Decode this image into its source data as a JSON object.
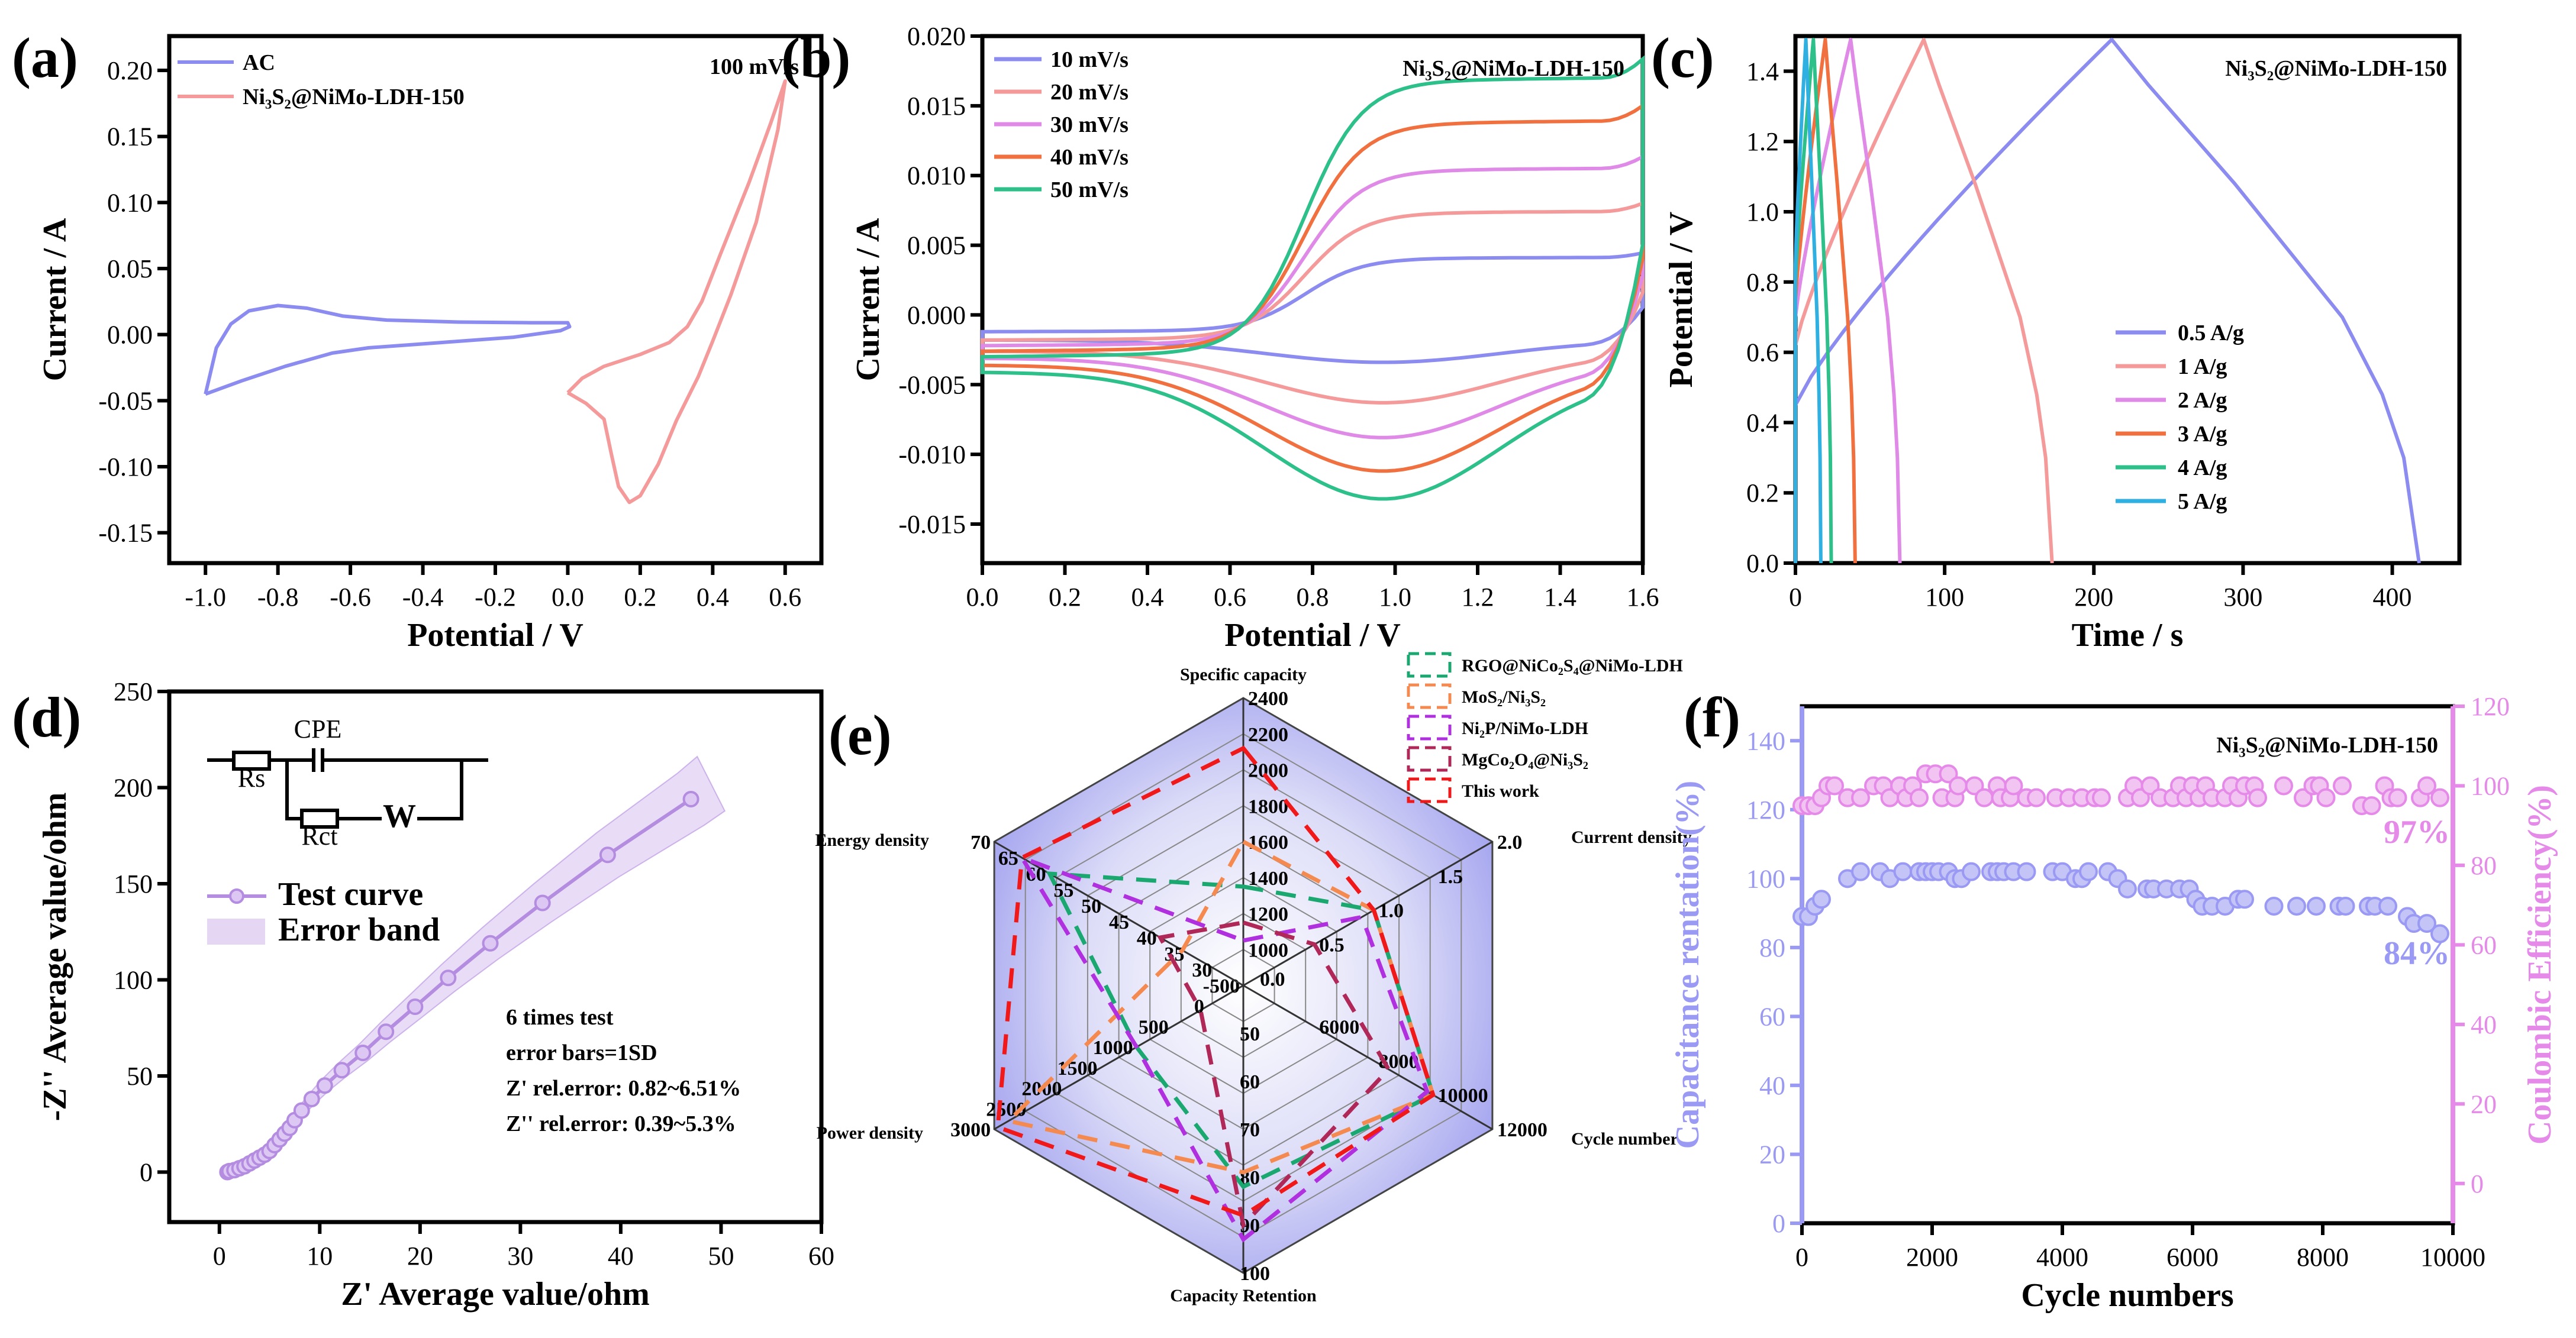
{
  "chart_data": [
    {
      "id": "a",
      "type": "line",
      "panel_label": "(a)",
      "xlabel": "Potential / V",
      "ylabel": "Current / A",
      "xlim": [
        -1.1,
        0.7
      ],
      "ylim": [
        -0.173,
        0.226
      ],
      "xticks": [
        "-1.0",
        "-0.8",
        "-0.6",
        "-0.4",
        "-0.2",
        "0.0",
        "0.2",
        "0.4",
        "0.6"
      ],
      "yticks": [
        "-0.15",
        "-0.10",
        "-0.05",
        "0.00",
        "0.05",
        "0.10",
        "0.15",
        "0.20"
      ],
      "annotation": "100 mV/s",
      "series": [
        {
          "name": "AC",
          "color": "#8c8cf0",
          "points": [
            [
              -1.0,
              -0.045
            ],
            [
              -0.97,
              -0.01
            ],
            [
              -0.93,
              0.008
            ],
            [
              -0.88,
              0.018
            ],
            [
              -0.8,
              0.022
            ],
            [
              -0.72,
              0.02
            ],
            [
              -0.62,
              0.014
            ],
            [
              -0.5,
              0.011
            ],
            [
              -0.3,
              0.0095
            ],
            [
              -0.1,
              0.009
            ],
            [
              0.0,
              0.009
            ],
            [
              0.005,
              0.006
            ],
            [
              -0.02,
              0.003
            ],
            [
              -0.15,
              -0.002
            ],
            [
              -0.35,
              -0.006
            ],
            [
              -0.55,
              -0.01
            ],
            [
              -0.65,
              -0.014
            ],
            [
              -0.78,
              -0.024
            ],
            [
              -0.9,
              -0.035
            ],
            [
              -1.0,
              -0.045
            ]
          ]
        },
        {
          "name": "Ni₃S₂@NiMo-LDH-150",
          "color": "#f59a9a",
          "points": [
            [
              0.0,
              -0.044
            ],
            [
              0.04,
              -0.033
            ],
            [
              0.1,
              -0.024
            ],
            [
              0.2,
              -0.015
            ],
            [
              0.28,
              -0.006
            ],
            [
              0.33,
              0.006
            ],
            [
              0.37,
              0.025
            ],
            [
              0.42,
              0.06
            ],
            [
              0.5,
              0.115
            ],
            [
              0.56,
              0.16
            ],
            [
              0.6,
              0.192
            ],
            [
              0.58,
              0.155
            ],
            [
              0.52,
              0.085
            ],
            [
              0.45,
              0.03
            ],
            [
              0.4,
              -0.005
            ],
            [
              0.36,
              -0.032
            ],
            [
              0.3,
              -0.065
            ],
            [
              0.25,
              -0.098
            ],
            [
              0.2,
              -0.122
            ],
            [
              0.17,
              -0.127
            ],
            [
              0.14,
              -0.115
            ],
            [
              0.12,
              -0.09
            ],
            [
              0.1,
              -0.064
            ],
            [
              0.05,
              -0.052
            ],
            [
              0.0,
              -0.044
            ]
          ]
        }
      ]
    },
    {
      "id": "b",
      "type": "line",
      "panel_label": "(b)",
      "xlabel": "Potential / V",
      "ylabel": "Current / A",
      "xlim": [
        0,
        1.6
      ],
      "ylim": [
        -0.0178,
        0.02
      ],
      "xticks": [
        "0.0",
        "0.2",
        "0.4",
        "0.6",
        "0.8",
        "1.0",
        "1.2",
        "1.4",
        "1.6"
      ],
      "yticks": [
        "-0.015",
        "-0.010",
        "-0.005",
        "0.000",
        "0.005",
        "0.010",
        "0.015",
        "0.020"
      ],
      "annotation": "Ni₃S₂@NiMo-LDH-150",
      "series": [
        {
          "name": "10 mV/s",
          "color": "#8c8cf0",
          "start_upper": -0.0012,
          "plateau": 0.004,
          "start_lower": -0.0018,
          "trough": -0.0034
        },
        {
          "name": "20 mV/s",
          "color": "#f59a9a",
          "start_upper": -0.0018,
          "plateau": 0.0072,
          "start_lower": -0.0026,
          "trough": -0.0063
        },
        {
          "name": "30 mV/s",
          "color": "#e08ae8",
          "start_upper": -0.0022,
          "plateau": 0.0102,
          "start_lower": -0.0031,
          "trough": -0.0088
        },
        {
          "name": "40 mV/s",
          "color": "#f07040",
          "start_upper": -0.0026,
          "plateau": 0.0135,
          "start_lower": -0.0036,
          "trough": -0.0112
        },
        {
          "name": "50 mV/s",
          "color": "#2ec08a",
          "start_upper": -0.003,
          "plateau": 0.0165,
          "start_lower": -0.0041,
          "trough": -0.0132
        }
      ]
    },
    {
      "id": "c",
      "type": "line",
      "panel_label": "(c)",
      "xlabel": "Time / s",
      "ylabel": "Potential / V",
      "xlim": [
        0,
        445
      ],
      "ylim": [
        0,
        1.5
      ],
      "xticks": [
        "0",
        "100",
        "200",
        "300",
        "400"
      ],
      "yticks": [
        "0.0",
        "0.2",
        "0.4",
        "0.6",
        "0.8",
        "1.0",
        "1.2",
        "1.4"
      ],
      "annotation": "Ni₃S₂@NiMo-LDH-150",
      "series": [
        {
          "name": "0.5 A/g",
          "color": "#8c8cf0",
          "start_v": 0.45,
          "charge_end": 212,
          "discharge_end": 418
        },
        {
          "name": "1 A/g",
          "color": "#f59a9a",
          "start_v": 0.62,
          "charge_end": 86,
          "discharge_end": 172
        },
        {
          "name": "2 A/g",
          "color": "#e08ae8",
          "start_v": 0.7,
          "charge_end": 37,
          "discharge_end": 70
        },
        {
          "name": "3 A/g",
          "color": "#f07040",
          "start_v": 0.75,
          "charge_end": 20,
          "discharge_end": 40
        },
        {
          "name": "4 A/g",
          "color": "#2ec08a",
          "start_v": 0.8,
          "charge_end": 12,
          "discharge_end": 24
        },
        {
          "name": "5 A/g",
          "color": "#30b0e0",
          "start_v": 0.85,
          "charge_end": 7,
          "discharge_end": 17
        }
      ]
    },
    {
      "id": "d",
      "type": "line",
      "panel_label": "(d)",
      "xlabel": "Z' Average value/ohm",
      "ylabel": "-Z'' Average value/ohm",
      "xlim": [
        -5,
        60
      ],
      "ylim": [
        -26,
        250
      ],
      "xticks": [
        "0",
        "10",
        "20",
        "30",
        "40",
        "50",
        "60"
      ],
      "yticks": [
        "0",
        "50",
        "100",
        "150",
        "200",
        "250"
      ],
      "legend": [
        "Test curve",
        "Error band"
      ],
      "circuit_labels": {
        "cpe": "CPE",
        "rs": "Rs",
        "rct": "Rct",
        "w": "W"
      },
      "notes": [
        "6 times test",
        "error bars=1SD",
        "Z' rel.error: 0.82~6.51%",
        "Z'' rel.error: 0.39~5.3%"
      ],
      "color": "#b48ce0",
      "points": [
        [
          0.8,
          0
        ],
        [
          1,
          0.5
        ],
        [
          1.5,
          1
        ],
        [
          2,
          2
        ],
        [
          2.5,
          3
        ],
        [
          3,
          4.5
        ],
        [
          3.5,
          6
        ],
        [
          4,
          7.5
        ],
        [
          4.5,
          9
        ],
        [
          5,
          11
        ],
        [
          5.5,
          14
        ],
        [
          6,
          17
        ],
        [
          6.5,
          20
        ],
        [
          7,
          23
        ],
        [
          7.5,
          27
        ],
        [
          8.2,
          32
        ],
        [
          9.2,
          38
        ],
        [
          10.5,
          45
        ],
        [
          12.2,
          53
        ],
        [
          14.3,
          62
        ],
        [
          16.6,
          73
        ],
        [
          19.5,
          86
        ],
        [
          22.8,
          101
        ],
        [
          27,
          119
        ],
        [
          32.2,
          140
        ],
        [
          38.7,
          165
        ],
        [
          47,
          194
        ]
      ],
      "band_rel": 0.07
    },
    {
      "id": "e",
      "type": "radar",
      "panel_label": "(e)",
      "axes": [
        {
          "name": "Specific capacity",
          "min": 800,
          "max": 2400,
          "ticks": [
            "1000",
            "1200",
            "1400",
            "1600",
            "1800",
            "2000",
            "2200",
            "2400"
          ]
        },
        {
          "name": "Current density",
          "min": -0.1,
          "max": 2.0,
          "ticks": [
            "0.0",
            "0.5",
            "1.0",
            "1.5",
            "2.0"
          ]
        },
        {
          "name": "Cycle number",
          "min": 3600,
          "max": 12000,
          "ticks": [
            "6000",
            "8000",
            "10000",
            "12000"
          ]
        },
        {
          "name": "Capacity Retention",
          "min": 40,
          "max": 100,
          "ticks": [
            "50",
            "60",
            "70",
            "80",
            "90",
            "100"
          ]
        },
        {
          "name": "Power density",
          "min": -500,
          "max": 3000,
          "ticks": [
            "-500",
            "0",
            "500",
            "1000",
            "1500",
            "2000",
            "2500",
            "3000"
          ]
        },
        {
          "name": "Energy density",
          "min": 25,
          "max": 70,
          "ticks": [
            "30",
            "35",
            "40",
            "45",
            "50",
            "55",
            "60",
            "65",
            "70"
          ]
        }
      ],
      "series": [
        {
          "name": "RGO@NiCo₂S₄@NiMo-LDH",
          "color": "#1aa870",
          "values": [
            1350,
            1.0,
            10000,
            82,
            1000,
            60
          ]
        },
        {
          "name": "MoS₂/Ni₃S₂",
          "color": "#f58a50",
          "values": [
            1600,
            1.0,
            10000,
            79,
            2800,
            36
          ]
        },
        {
          "name": "Ni₂P/NiMo-LDH",
          "color": "#b030e0",
          "values": [
            1050,
            0.9,
            9800,
            93,
            1000,
            65
          ]
        },
        {
          "name": "MgCo₂O₄@Ni₃S₂",
          "color": "#b02858",
          "values": [
            1150,
            0.5,
            8500,
            90,
            100,
            40
          ]
        },
        {
          "name": "This work",
          "color": "#f01818",
          "values": [
            2120,
            1.0,
            10000,
            88,
            2950,
            65
          ]
        }
      ]
    },
    {
      "id": "f",
      "type": "scatter",
      "panel_label": "(f)",
      "xlabel": "Cycle numbers",
      "ylabel_left": "Capacitance rentation(%)",
      "ylabel_right": "Coulombic Efficiency(%)",
      "xlim": [
        0,
        10000
      ],
      "ylim_left": [
        0,
        150
      ],
      "ylim_right": [
        -10,
        120
      ],
      "xticks": [
        "0",
        "2000",
        "4000",
        "6000",
        "8000",
        "10000"
      ],
      "yticks_left": [
        "0",
        "20",
        "40",
        "60",
        "80",
        "100",
        "120",
        "140"
      ],
      "yticks_right": [
        "0",
        "20",
        "40",
        "60",
        "80",
        "100",
        "120"
      ],
      "annotation": "Ni₃S₂@NiMo-LDH-150",
      "end_labels": {
        "retention": "84%",
        "efficiency": "97%"
      },
      "left_color": "#9a9af5",
      "right_color": "#e58ae8",
      "retention": [
        [
          0,
          89
        ],
        [
          100,
          89
        ],
        [
          200,
          92
        ],
        [
          300,
          94
        ],
        [
          700,
          100
        ],
        [
          900,
          102
        ],
        [
          1200,
          102
        ],
        [
          1350,
          100
        ],
        [
          1550,
          102
        ],
        [
          1800,
          102
        ],
        [
          1900,
          102
        ],
        [
          2000,
          102
        ],
        [
          2100,
          102
        ],
        [
          2250,
          102
        ],
        [
          2350,
          100
        ],
        [
          2450,
          100
        ],
        [
          2600,
          102
        ],
        [
          2900,
          102
        ],
        [
          3000,
          102
        ],
        [
          3100,
          102
        ],
        [
          3250,
          102
        ],
        [
          3450,
          102
        ],
        [
          3850,
          102
        ],
        [
          4000,
          102
        ],
        [
          4200,
          100
        ],
        [
          4300,
          100
        ],
        [
          4400,
          102
        ],
        [
          4700,
          102
        ],
        [
          4850,
          100
        ],
        [
          5000,
          97
        ],
        [
          5300,
          97
        ],
        [
          5400,
          97
        ],
        [
          5600,
          97
        ],
        [
          5800,
          97
        ],
        [
          5950,
          97
        ],
        [
          6050,
          94
        ],
        [
          6150,
          92
        ],
        [
          6300,
          92
        ],
        [
          6500,
          92
        ],
        [
          6700,
          94
        ],
        [
          6800,
          94
        ],
        [
          7250,
          92
        ],
        [
          7600,
          92
        ],
        [
          7900,
          92
        ],
        [
          8250,
          92
        ],
        [
          8350,
          92
        ],
        [
          8700,
          92
        ],
        [
          8800,
          92
        ],
        [
          9000,
          92
        ],
        [
          9300,
          89
        ],
        [
          9400,
          87
        ],
        [
          9600,
          87
        ],
        [
          9800,
          84
        ]
      ],
      "efficiency": [
        [
          0,
          95
        ],
        [
          100,
          95
        ],
        [
          200,
          95
        ],
        [
          300,
          97
        ],
        [
          400,
          100
        ],
        [
          500,
          100
        ],
        [
          700,
          97
        ],
        [
          900,
          97
        ],
        [
          1100,
          100
        ],
        [
          1250,
          100
        ],
        [
          1350,
          97
        ],
        [
          1500,
          100
        ],
        [
          1600,
          97
        ],
        [
          1700,
          100
        ],
        [
          1800,
          97
        ],
        [
          1900,
          103
        ],
        [
          2050,
          103
        ],
        [
          2250,
          103
        ],
        [
          2150,
          97
        ],
        [
          2350,
          97
        ],
        [
          2400,
          100
        ],
        [
          2650,
          100
        ],
        [
          2800,
          97
        ],
        [
          3000,
          100
        ],
        [
          3050,
          97
        ],
        [
          3200,
          97
        ],
        [
          3250,
          100
        ],
        [
          3450,
          97
        ],
        [
          3600,
          97
        ],
        [
          3900,
          97
        ],
        [
          4100,
          97
        ],
        [
          4300,
          97
        ],
        [
          4500,
          97
        ],
        [
          4600,
          97
        ],
        [
          5000,
          97
        ],
        [
          5100,
          100
        ],
        [
          5200,
          97
        ],
        [
          5350,
          100
        ],
        [
          5500,
          97
        ],
        [
          5700,
          97
        ],
        [
          5800,
          100
        ],
        [
          5900,
          97
        ],
        [
          6000,
          100
        ],
        [
          6100,
          97
        ],
        [
          6200,
          100
        ],
        [
          6300,
          97
        ],
        [
          6500,
          97
        ],
        [
          6600,
          100
        ],
        [
          6700,
          97
        ],
        [
          6800,
          100
        ],
        [
          6950,
          100
        ],
        [
          7000,
          97
        ],
        [
          7400,
          100
        ],
        [
          7700,
          97
        ],
        [
          7850,
          100
        ],
        [
          7950,
          100
        ],
        [
          8050,
          97
        ],
        [
          8300,
          100
        ],
        [
          8600,
          95
        ],
        [
          8750,
          95
        ],
        [
          8950,
          100
        ],
        [
          9050,
          97
        ],
        [
          9150,
          97
        ],
        [
          9500,
          97
        ],
        [
          9600,
          100
        ],
        [
          9800,
          97
        ]
      ]
    }
  ]
}
